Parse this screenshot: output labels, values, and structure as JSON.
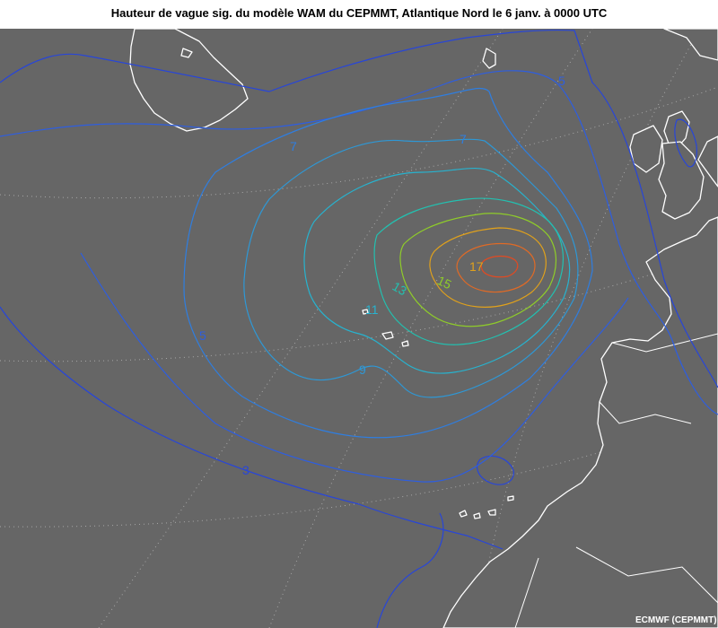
{
  "title": "Hauteur de vague sig. du modèle WAM du CEPMMT, Atlantique Nord le 6 janv. à 0000 UTC",
  "credit": "ECMWF (CEPMMT)",
  "colors": {
    "ocean": "#666666",
    "coast": "#ffffff",
    "graticule": "#a8a8a8",
    "contours": {
      "3": "#2846d8",
      "5": "#2e5ee0",
      "7": "#2f7ee0",
      "9": "#2e98d6",
      "11": "#27b3cf",
      "13": "#23c0b0",
      "15": "#8fcc2a",
      "17": "#e0a11c",
      "19": "#e06a26"
    }
  },
  "contour_labels": [
    {
      "text": "3",
      "level": 3
    },
    {
      "text": "5",
      "level": 5
    },
    {
      "text": "5",
      "level": 5
    },
    {
      "text": "7",
      "level": 7
    },
    {
      "text": "7",
      "level": 7
    },
    {
      "text": "9",
      "level": 9
    },
    {
      "text": "11",
      "level": 11
    },
    {
      "text": "13",
      "level": 13
    },
    {
      "text": "15",
      "level": 15
    },
    {
      "text": "17",
      "level": 17
    }
  ]
}
